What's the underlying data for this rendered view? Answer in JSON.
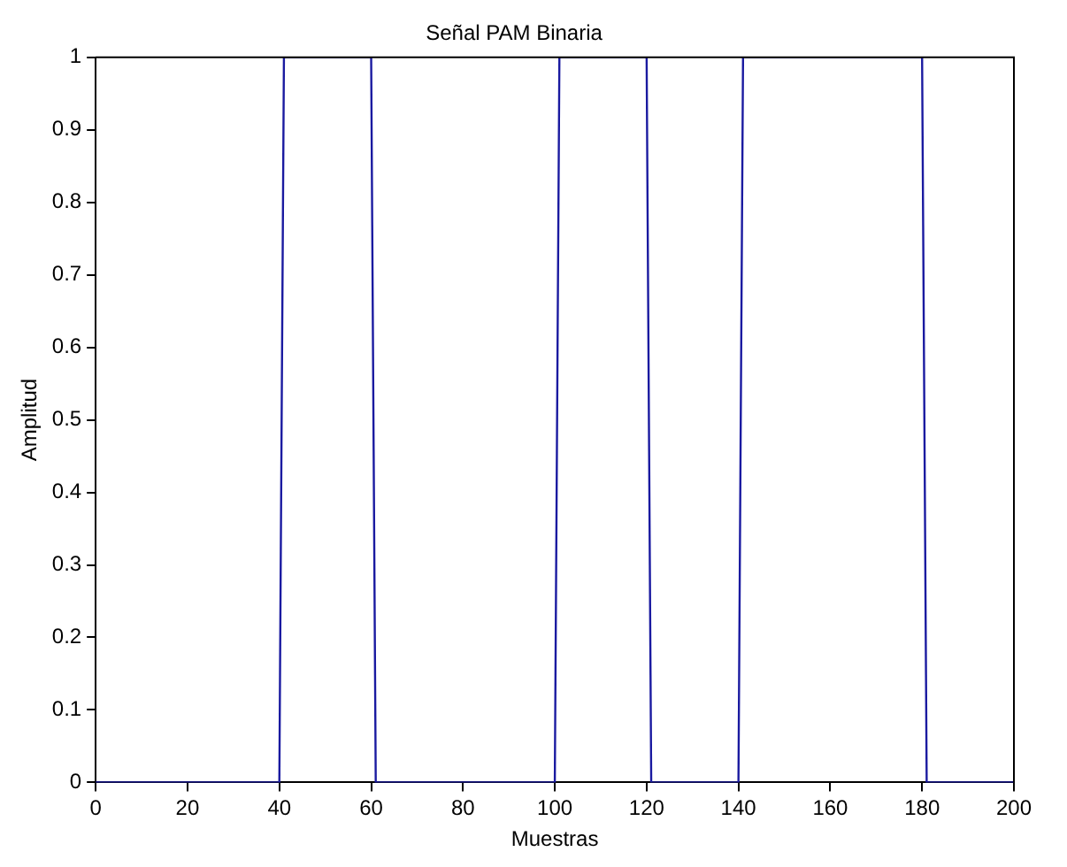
{
  "chart_data": {
    "type": "line",
    "title": "Señal PAM Binaria",
    "xlabel": "Muestras",
    "ylabel": "Amplitud",
    "x": [
      0,
      40,
      41,
      60,
      61,
      100,
      101,
      120,
      121,
      140,
      141,
      180,
      181,
      200
    ],
    "series": [
      {
        "color": "#1a1aa0",
        "values": [
          0,
          0,
          1,
          1,
          0,
          0,
          1,
          1,
          0,
          0,
          1,
          1,
          0,
          0
        ]
      }
    ],
    "xlim": [
      0,
      200
    ],
    "xticks": [
      0,
      20,
      40,
      60,
      80,
      100,
      120,
      140,
      160,
      180,
      200
    ],
    "ylim": [
      0,
      1
    ],
    "yticks": [
      0,
      0.1,
      0.2,
      0.3,
      0.4,
      0.5,
      0.6,
      0.7,
      0.8,
      0.9,
      1
    ],
    "grid": false,
    "legend": false,
    "marker": "none",
    "line_style": "solid"
  }
}
